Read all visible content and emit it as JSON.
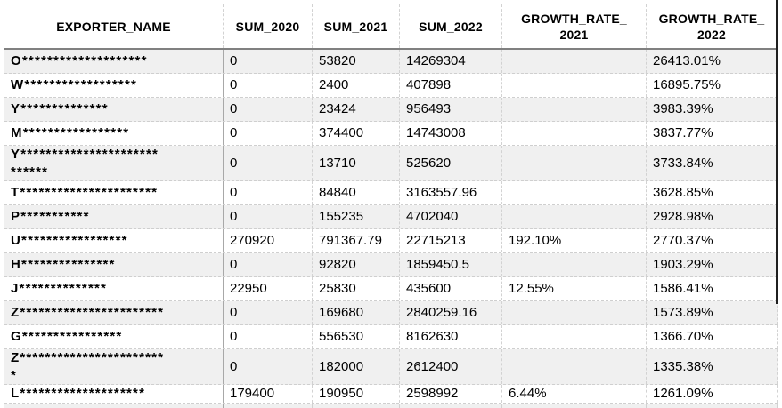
{
  "header": {
    "cols": [
      "EXPORTER_NAME",
      "SUM_2020",
      "SUM_2021",
      "SUM_2022",
      "GROWTH_RATE_\n2021",
      "GROWTH_RATE_\n2022"
    ]
  },
  "rows": [
    {
      "name": "O********************",
      "sum_2020": "0",
      "sum_2021": "53820",
      "sum_2022": "14269304",
      "growth_2021": "",
      "growth_2022": "26413.01%"
    },
    {
      "name": "W******************",
      "sum_2020": "0",
      "sum_2021": "2400",
      "sum_2022": "407898",
      "growth_2021": "",
      "growth_2022": "16895.75%"
    },
    {
      "name": "Y**************",
      "sum_2020": "0",
      "sum_2021": "23424",
      "sum_2022": "956493",
      "growth_2021": "",
      "growth_2022": "3983.39%"
    },
    {
      "name": "M*****************",
      "sum_2020": "0",
      "sum_2021": "374400",
      "sum_2022": "14743008",
      "growth_2021": "",
      "growth_2022": "3837.77%"
    },
    {
      "name": "Y**********************\n******",
      "sum_2020": "0",
      "sum_2021": "13710",
      "sum_2022": "525620",
      "growth_2021": "",
      "growth_2022": "3733.84%"
    },
    {
      "name": "T**********************",
      "sum_2020": "0",
      "sum_2021": "84840",
      "sum_2022": "3163557.96",
      "growth_2021": "",
      "growth_2022": "3628.85%"
    },
    {
      "name": "P***********",
      "sum_2020": "0",
      "sum_2021": "155235",
      "sum_2022": "4702040",
      "growth_2021": "",
      "growth_2022": "2928.98%"
    },
    {
      "name": "U*****************",
      "sum_2020": "270920",
      "sum_2021": "791367.79",
      "sum_2022": "22715213",
      "growth_2021": "192.10%",
      "growth_2022": "2770.37%"
    },
    {
      "name": "H***************",
      "sum_2020": "0",
      "sum_2021": "92820",
      "sum_2022": "1859450.5",
      "growth_2021": "",
      "growth_2022": "1903.29%"
    },
    {
      "name": "J**************",
      "sum_2020": "22950",
      "sum_2021": "25830",
      "sum_2022": "435600",
      "growth_2021": "12.55%",
      "growth_2022": "1586.41%"
    },
    {
      "name": "Z***********************",
      "sum_2020": "0",
      "sum_2021": "169680",
      "sum_2022": "2840259.16",
      "growth_2021": "",
      "growth_2022": "1573.89%"
    },
    {
      "name": "G****************",
      "sum_2020": "0",
      "sum_2021": "556530",
      "sum_2022": "8162630",
      "growth_2021": "",
      "growth_2022": "1366.70%"
    },
    {
      "name": "Z***********************\n*",
      "sum_2020": "0",
      "sum_2021": "182000",
      "sum_2022": "2612400",
      "growth_2021": "",
      "growth_2022": "1335.38%"
    },
    {
      "name": "L********************",
      "sum_2020": "179400",
      "sum_2021": "190950",
      "sum_2022": "2598992",
      "growth_2021": "6.44%",
      "growth_2022": "1261.09%"
    }
  ],
  "colors": {
    "row_stripe": "#f0f0f0",
    "header_rule": "#808080",
    "gridline_dashed": "#cfcfcf",
    "name_column_border": "#a8a8a8",
    "right_dark_edge": "#1f1f1f",
    "text": "#000000"
  }
}
